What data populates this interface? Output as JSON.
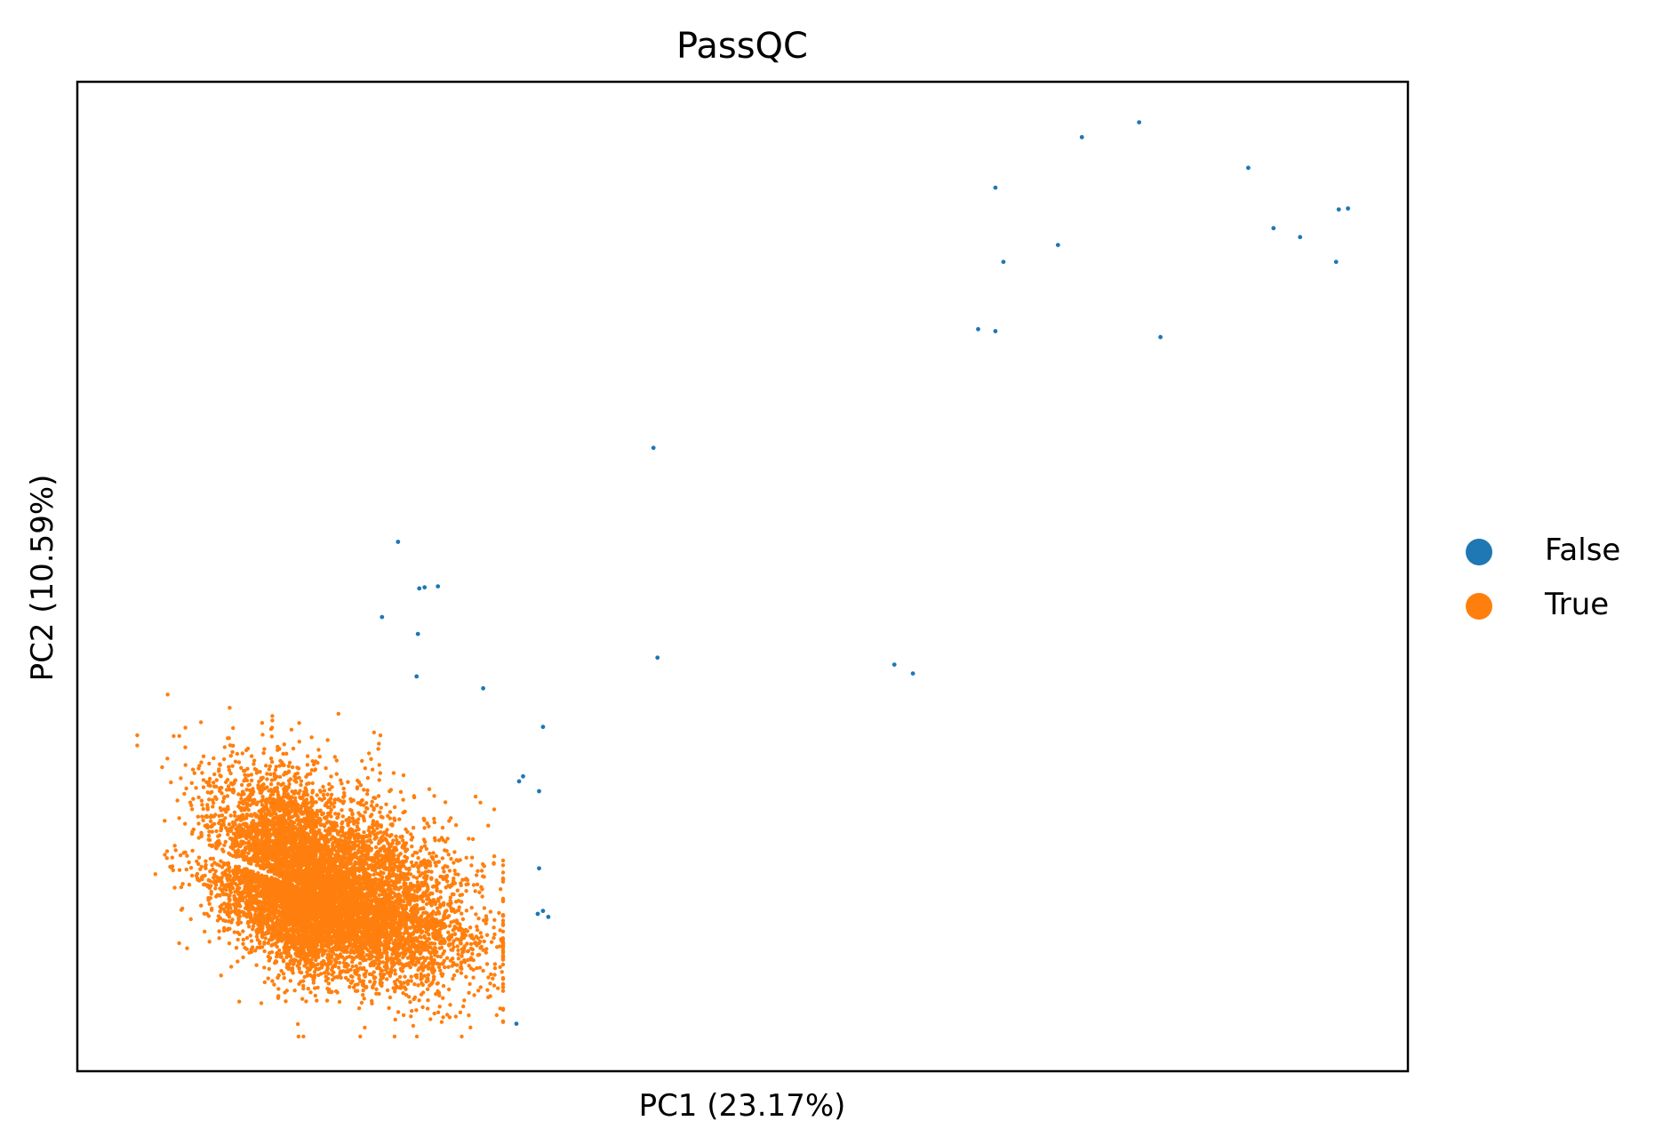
{
  "chart_data": {
    "type": "scatter",
    "title": "PassQC",
    "xlabel": "PC1 (23.17%)",
    "ylabel": "PC2 (10.59%)",
    "xlim": [
      0,
      100
    ],
    "ylim": [
      0,
      100
    ],
    "grid": false,
    "ticks": false,
    "legend_position": "right",
    "series": [
      {
        "name": "False",
        "color": "#1f77b4",
        "points": [
          [
            43.3,
            63.0
          ],
          [
            24.1,
            53.5
          ],
          [
            25.7,
            48.8
          ],
          [
            26.1,
            48.9
          ],
          [
            27.1,
            49.0
          ],
          [
            22.9,
            45.9
          ],
          [
            25.6,
            44.2
          ],
          [
            25.5,
            39.9
          ],
          [
            30.5,
            38.7
          ],
          [
            43.6,
            41.8
          ],
          [
            61.4,
            41.1
          ],
          [
            62.8,
            40.2
          ],
          [
            35.0,
            34.8
          ],
          [
            33.5,
            29.8
          ],
          [
            33.2,
            29.3
          ],
          [
            34.7,
            28.3
          ],
          [
            34.7,
            20.5
          ],
          [
            35.0,
            16.2
          ],
          [
            35.4,
            15.6
          ],
          [
            34.6,
            15.9
          ],
          [
            33.0,
            4.8
          ],
          [
            69.0,
            89.3
          ],
          [
            69.6,
            81.8
          ],
          [
            67.7,
            75.0
          ],
          [
            69.0,
            74.8
          ],
          [
            73.7,
            83.5
          ],
          [
            75.5,
            94.4
          ],
          [
            79.8,
            95.9
          ],
          [
            81.4,
            74.2
          ],
          [
            88.0,
            91.3
          ],
          [
            89.9,
            85.2
          ],
          [
            91.9,
            84.3
          ],
          [
            94.8,
            87.1
          ],
          [
            95.5,
            87.2
          ],
          [
            94.6,
            81.8
          ]
        ]
      },
      {
        "name": "True",
        "color": "#ff7f0e",
        "cluster": {
          "center": [
            18.0,
            18.0
          ],
          "spread": [
            4.3,
            5.4
          ],
          "count": 9000
        }
      }
    ]
  }
}
